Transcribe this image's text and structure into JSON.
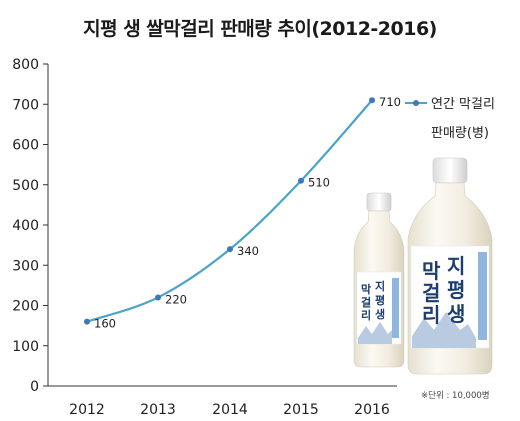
{
  "chart_data": {
    "type": "line",
    "title": "지평 생 쌀막걸리 판매량 추이(2012-2016)",
    "categories": [
      "2012",
      "2013",
      "2014",
      "2015",
      "2016"
    ],
    "series": [
      {
        "name": "연간 막걸리 판매량(병)",
        "values": [
          160,
          220,
          340,
          510,
          710
        ]
      }
    ],
    "data_labels": [
      "160",
      "220",
      "340",
      "510",
      "710"
    ],
    "ylim": [
      0,
      800
    ],
    "yticks": [
      "0",
      "100",
      "200",
      "300",
      "400",
      "500",
      "600",
      "700",
      "800"
    ],
    "grid": false,
    "legend": "right",
    "line_color": "#4aa3c9",
    "marker_color": "#3f77b8"
  },
  "legend": {
    "line1": "연간 막걸리",
    "line2": "판매량(병)"
  },
  "note": "※단위 : 10,000병",
  "bottle_labels": {
    "small": {
      "col1": "막걸리",
      "col2": "지평생"
    },
    "large": {
      "col1": "막걸리",
      "col2": "지평생"
    }
  },
  "colors": {
    "bottle_body": "#f3efe4",
    "bottle_cap": "#f7f7f7",
    "label_text": "#1c3d6e",
    "label_accent": "#2f8fd0"
  }
}
